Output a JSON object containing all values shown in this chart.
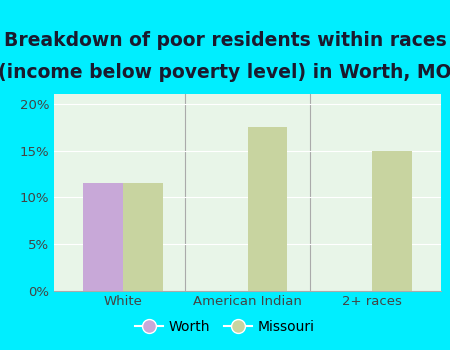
{
  "title_line1": "Breakdown of poor residents within races",
  "title_line2": "(income below poverty level) in Worth, MO",
  "categories": [
    "White",
    "American Indian",
    "2+ races"
  ],
  "worth_values": [
    11.5,
    null,
    null
  ],
  "missouri_values": [
    11.5,
    17.5,
    15.0
  ],
  "worth_color": "#c8a8d8",
  "missouri_color": "#c8d4a0",
  "worth_label": "Worth",
  "missouri_label": "Missouri",
  "ylim": [
    0,
    21
  ],
  "yticks": [
    0,
    5,
    10,
    15,
    20
  ],
  "ytick_labels": [
    "0%",
    "5%",
    "10%",
    "15%",
    "20%"
  ],
  "bg_outer": "#00eeff",
  "bg_inner": "#e8f5e8",
  "bar_width": 0.32,
  "title_fontsize": 13.5,
  "tick_fontsize": 9.5,
  "legend_fontsize": 10
}
